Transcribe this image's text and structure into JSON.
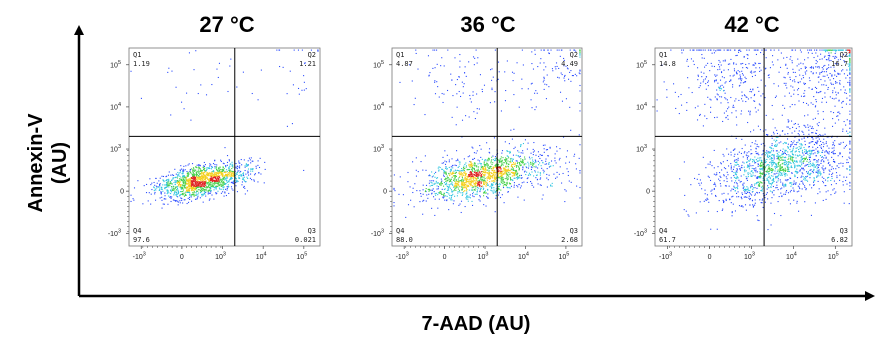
{
  "chart_data": {
    "type": "scatter",
    "xlabel": "7-AAD (AU)",
    "ylabel_line1": "Annexin-V",
    "ylabel_line2": "(AU)",
    "x_ticks": [
      {
        "v": -1000,
        "t": "-10",
        "e": "3"
      },
      {
        "v": 0,
        "t": "0",
        "e": ""
      },
      {
        "v": 1000,
        "t": "10",
        "e": "3"
      },
      {
        "v": 10000,
        "t": "10",
        "e": "4"
      },
      {
        "v": 100000,
        "t": "10",
        "e": "5"
      }
    ],
    "y_ticks": [
      {
        "v": -1000,
        "t": "-10",
        "e": "3"
      },
      {
        "v": 0,
        "t": "0",
        "e": ""
      },
      {
        "v": 1000,
        "t": "10",
        "e": "3"
      },
      {
        "v": 10000,
        "t": "10",
        "e": "4"
      },
      {
        "v": 100000,
        "t": "10",
        "e": "5"
      }
    ],
    "x_range": [
      -2000,
      250000
    ],
    "y_range": [
      -2000,
      250000
    ],
    "gate": {
      "x": 2000,
      "y": 2000
    },
    "colors": {
      "low": "#2b4cff",
      "mid1": "#2ec4e0",
      "mid2": "#46d04a",
      "mid3": "#f5d020",
      "high": "#e02020",
      "gate": "#000000"
    },
    "panels": [
      {
        "title": "27 °C",
        "quadrants": {
          "Q1": {
            "label": "Q1",
            "value": "1.19"
          },
          "Q2": {
            "label": "Q2",
            "value": "1.21"
          },
          "Q3": {
            "label": "Q3",
            "value": "0.021"
          },
          "Q4": {
            "label": "Q4",
            "value": "97.6"
          }
        }
      },
      {
        "title": "36 °C",
        "quadrants": {
          "Q1": {
            "label": "Q1",
            "value": "4.87"
          },
          "Q2": {
            "label": "Q2",
            "value": "4.49"
          },
          "Q3": {
            "label": "Q3",
            "value": "2.68"
          },
          "Q4": {
            "label": "Q4",
            "value": "88.0"
          }
        }
      },
      {
        "title": "42 °C",
        "quadrants": {
          "Q1": {
            "label": "Q1",
            "value": "14.8"
          },
          "Q2": {
            "label": "Q2",
            "value": "16.7"
          },
          "Q3": {
            "label": "Q3",
            "value": "6.82"
          },
          "Q4": {
            "label": "Q4",
            "value": "61.7"
          }
        }
      }
    ]
  }
}
